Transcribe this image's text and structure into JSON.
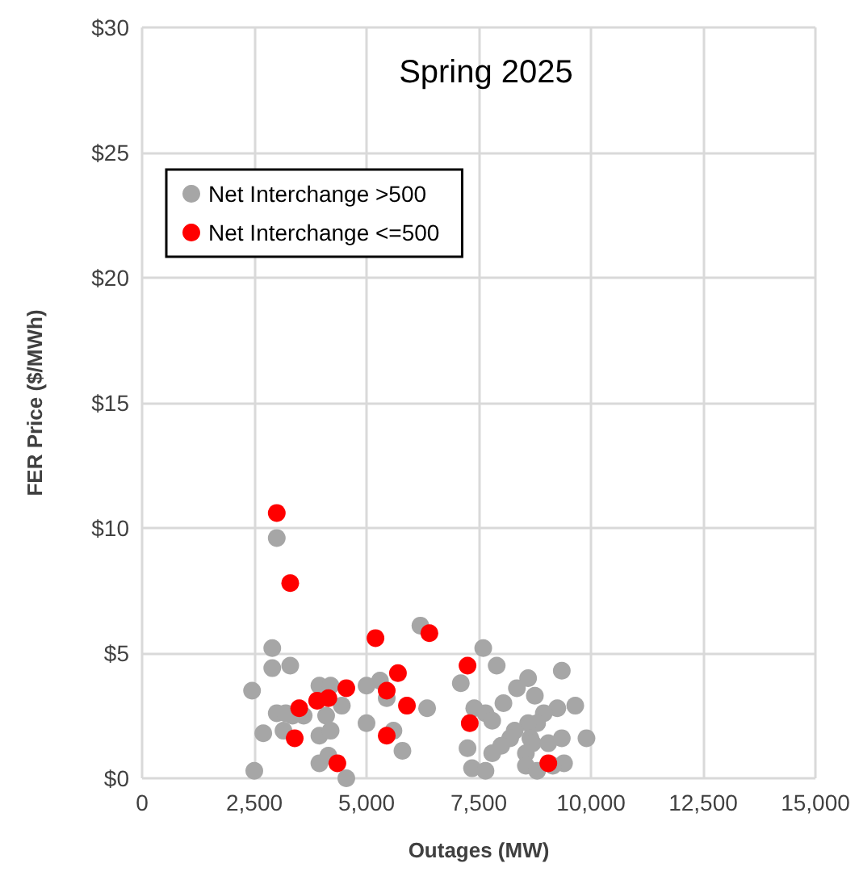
{
  "chart_data": {
    "type": "scatter",
    "title": "Spring 2025",
    "xlabel": "Outages (MW)",
    "ylabel": "FER Price ($/MWh)",
    "xlim": [
      0,
      15000
    ],
    "xticks": [
      0,
      {
        "value": 2500,
        "label": "2,500"
      },
      {
        "value": 5000,
        "label": "5,000"
      },
      {
        "value": 7500,
        "label": "7,500"
      },
      {
        "value": 10000,
        "label": "10,000"
      },
      {
        "value": 12500,
        "label": "12,500"
      },
      {
        "value": 15000,
        "label": "15,000"
      }
    ],
    "ylim": [
      0,
      30
    ],
    "yticks": [
      {
        "value": 0,
        "label": "$0"
      },
      {
        "value": 5,
        "label": "$5"
      },
      {
        "value": 10,
        "label": "$10"
      },
      {
        "value": 15,
        "label": "$15"
      },
      {
        "value": 20,
        "label": "$20"
      },
      {
        "value": 25,
        "label": "$25"
      },
      {
        "value": 30,
        "label": "$30"
      }
    ],
    "grid": true,
    "legend": "top left",
    "marker": "circle",
    "series": [
      {
        "name": "Net Interchange >500",
        "color": "#a6a6a6",
        "x": [
          3000,
          2900,
          2900,
          3300,
          2450,
          2700,
          2500,
          3000,
          3200,
          3350,
          3600,
          3150,
          3950,
          4200,
          4100,
          3950,
          4200,
          4450,
          3950,
          4150,
          4550,
          5000,
          5300,
          5450,
          5000,
          5600,
          5800,
          6350,
          6200,
          7600,
          7900,
          7100,
          9350,
          8600,
          8350,
          8750,
          8050,
          7400,
          7650,
          7800,
          9250,
          9650,
          8950,
          8800,
          8600,
          8300,
          8200,
          8650,
          8700,
          9050,
          9350,
          9900,
          7250,
          8000,
          7800,
          8550,
          9400,
          7350,
          7650,
          8550,
          8800,
          9150
        ],
        "values": [
          9.6,
          5.2,
          4.4,
          4.5,
          3.5,
          1.8,
          0.3,
          2.6,
          2.6,
          2.5,
          2.5,
          1.9,
          3.7,
          3.7,
          2.5,
          1.7,
          1.9,
          2.9,
          0.6,
          0.9,
          0.0,
          3.7,
          3.9,
          3.2,
          2.2,
          1.9,
          1.1,
          2.8,
          6.1,
          5.2,
          4.5,
          3.8,
          4.3,
          4.0,
          3.6,
          3.3,
          3.0,
          2.8,
          2.6,
          2.3,
          2.8,
          2.9,
          2.6,
          2.2,
          2.2,
          1.9,
          1.6,
          1.6,
          1.4,
          1.4,
          1.6,
          1.6,
          1.2,
          1.3,
          1.0,
          1.0,
          0.6,
          0.4,
          0.3,
          0.5,
          0.3,
          0.5
        ]
      },
      {
        "name": "Net Interchange <=500",
        "color": "#ff0000",
        "x": [
          3000,
          3300,
          5200,
          6400,
          3500,
          3400,
          3900,
          4150,
          4550,
          4350,
          5700,
          5450,
          5900,
          5450,
          7250,
          7300,
          9050
        ],
        "values": [
          10.6,
          7.8,
          5.6,
          5.8,
          2.8,
          1.6,
          3.1,
          3.2,
          3.6,
          0.6,
          4.2,
          3.5,
          2.9,
          1.7,
          4.5,
          2.2,
          0.6
        ]
      }
    ]
  }
}
